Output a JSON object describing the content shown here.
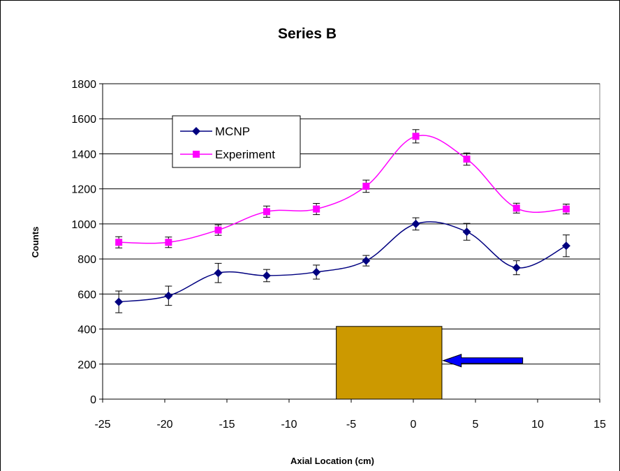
{
  "chart_data": {
    "type": "line",
    "title": "Series B",
    "xlabel": "Axial Location (cm)",
    "ylabel": "Counts",
    "xlim": [
      -25,
      15
    ],
    "ylim": [
      0,
      1800
    ],
    "x_ticks": [
      -25,
      -20,
      -15,
      -10,
      -5,
      0,
      5,
      10,
      15
    ],
    "y_ticks": [
      0,
      200,
      400,
      600,
      800,
      1000,
      1200,
      1400,
      1600,
      1800
    ],
    "grid": "horizontal",
    "legend_position": "upper-left",
    "series": [
      {
        "name": "MCNP",
        "color": "#000080",
        "marker": "diamond",
        "x": [
          -23.7,
          -19.7,
          -15.7,
          -11.8,
          -7.8,
          -3.8,
          0.2,
          4.3,
          8.3,
          12.3
        ],
        "y": [
          555,
          590,
          720,
          705,
          725,
          790,
          1000,
          955,
          750,
          875
        ],
        "error": [
          62,
          55,
          55,
          35,
          40,
          30,
          35,
          48,
          40,
          62
        ]
      },
      {
        "name": "Experiment",
        "color": "#ff00ff",
        "marker": "square",
        "x": [
          -23.7,
          -19.7,
          -15.7,
          -11.8,
          -7.8,
          -3.8,
          0.2,
          4.3,
          8.3,
          12.3
        ],
        "y": [
          895,
          895,
          965,
          1070,
          1085,
          1215,
          1500,
          1370,
          1090,
          1085
        ],
        "error": [
          32,
          30,
          30,
          32,
          32,
          35,
          38,
          35,
          28,
          28
        ]
      }
    ],
    "annotations": [
      {
        "type": "rectangle",
        "color": "#cc9900",
        "x_range": [
          -6.2,
          2.3
        ],
        "y_range": [
          0,
          415
        ]
      },
      {
        "type": "arrow",
        "color": "#0000ff",
        "from": [
          8.8,
          220
        ],
        "to": [
          2.4,
          220
        ]
      }
    ]
  }
}
